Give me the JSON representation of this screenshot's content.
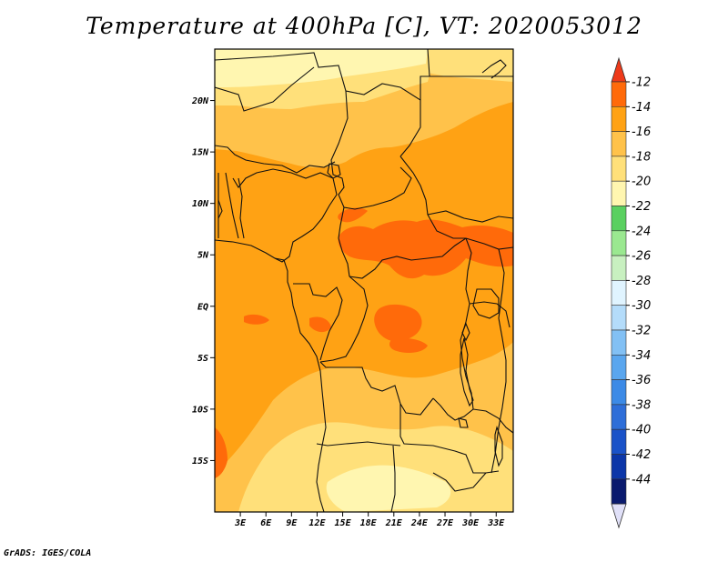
{
  "title": "Temperature at 400hPa [C], VT: 2020053012",
  "credit": "GrADS: IGES/COLA",
  "map": {
    "lon_range": [
      0,
      35
    ],
    "lat_range": [
      -20,
      25
    ],
    "lon_ticks": [
      {
        "value": 3,
        "label": "3E"
      },
      {
        "value": 6,
        "label": "6E"
      },
      {
        "value": 9,
        "label": "9E"
      },
      {
        "value": 12,
        "label": "12E"
      },
      {
        "value": 15,
        "label": "15E"
      },
      {
        "value": 18,
        "label": "18E"
      },
      {
        "value": 21,
        "label": "21E"
      },
      {
        "value": 24,
        "label": "24E"
      },
      {
        "value": 27,
        "label": "27E"
      },
      {
        "value": 30,
        "label": "30E"
      },
      {
        "value": 33,
        "label": "33E"
      }
    ],
    "lat_ticks": [
      {
        "value": 20,
        "label": "20N"
      },
      {
        "value": 15,
        "label": "15N"
      },
      {
        "value": 10,
        "label": "10N"
      },
      {
        "value": 5,
        "label": "5N"
      },
      {
        "value": 0,
        "label": "EQ"
      },
      {
        "value": -5,
        "label": "5S"
      },
      {
        "value": -10,
        "label": "10S"
      },
      {
        "value": -15,
        "label": "15S"
      }
    ]
  },
  "colorbar": {
    "labels": [
      "-12",
      "-14",
      "-16",
      "-18",
      "-20",
      "-22",
      "-24",
      "-26",
      "-28",
      "-30",
      "-32",
      "-34",
      "-36",
      "-38",
      "-40",
      "-42",
      "-44"
    ],
    "colors": [
      "#e0e0f8",
      "#0a1a6e",
      "#0c36a8",
      "#1a52c8",
      "#2e6ed8",
      "#3c8ae6",
      "#5aa6ee",
      "#82c0f4",
      "#b4dcfa",
      "#e0f4ff",
      "#c8f0c0",
      "#9ae890",
      "#5ad060",
      "#fff6b0",
      "#ffe07a",
      "#ffc24a",
      "#ffa214",
      "#ff6a0a",
      "#ee3a1a"
    ]
  },
  "fill_colors": {
    "level_m22_m20": "#fff6b0",
    "level_m20_m18": "#ffe07a",
    "level_m18_m16": "#ffc24a",
    "level_m16_m14": "#ffa214",
    "level_m14_m12": "#ff6a0a"
  }
}
